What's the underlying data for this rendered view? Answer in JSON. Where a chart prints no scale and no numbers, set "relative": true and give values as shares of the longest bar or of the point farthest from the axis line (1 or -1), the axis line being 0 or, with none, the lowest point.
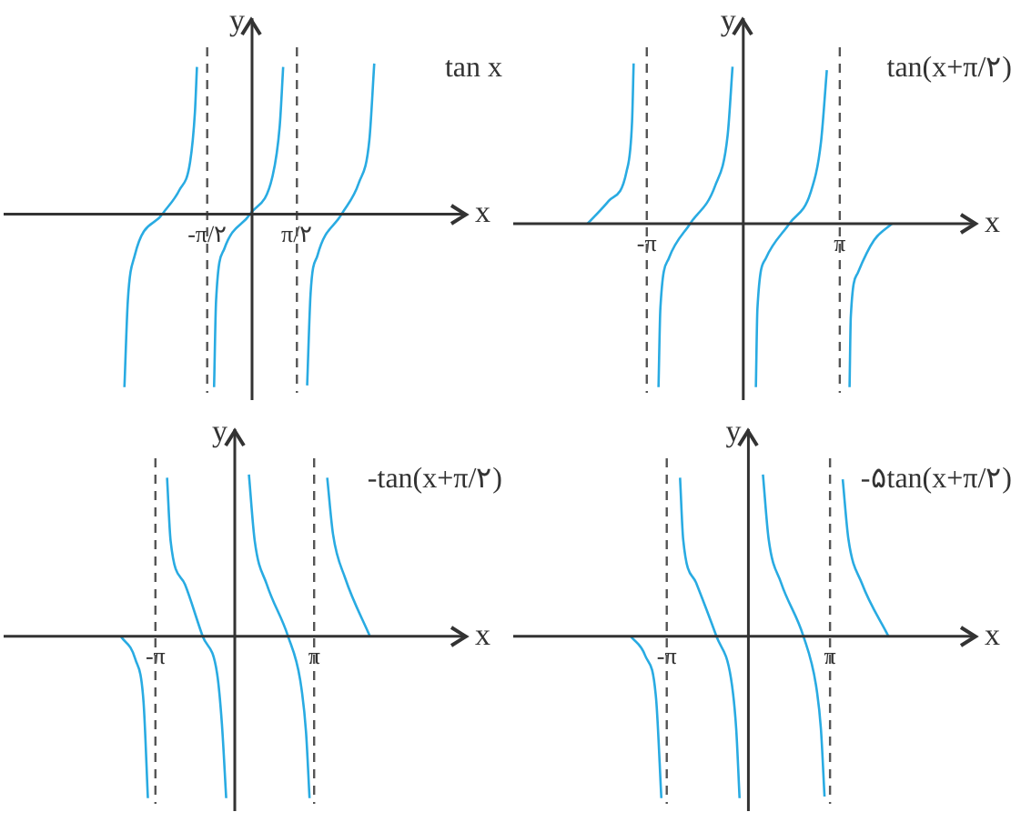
{
  "chart_data": [
    {
      "type": "line",
      "title": "tan x",
      "xlabel": "x",
      "ylabel": "y",
      "relative": true,
      "grid": false,
      "legend": false,
      "tick_labels": "x",
      "marker": "none",
      "xlim": [
        -8.7,
        7.49
      ],
      "xticks": [
        {
          "value": -1.5708,
          "label": "-π/۲"
        },
        {
          "value": 1.5708,
          "label": "π/۲"
        }
      ],
      "ref_lines": [
        {
          "axis": "x",
          "value": -1.5708,
          "color": "#555555",
          "line_style": "dashed"
        },
        {
          "axis": "x",
          "value": 1.5708,
          "color": "#555555",
          "line_style": "dashed"
        }
      ],
      "series": [
        {
          "color": "#29abe2",
          "x": [
            -4.47,
            -4.35,
            -4.11,
            -3.14,
            -2.54,
            -2.17,
            -2.0,
            -1.93
          ],
          "values": [
            -1.0,
            -0.5,
            -0.24,
            0,
            0.14,
            0.3,
            0.59,
            0.85
          ]
        },
        {
          "color": "#29abe2",
          "x": [
            -1.33,
            -1.26,
            -0.97,
            -0.07,
            0.72,
            0.97,
            1.09
          ],
          "values": [
            -1.0,
            -0.5,
            -0.2,
            0,
            0.22,
            0.51,
            0.85
          ]
        },
        {
          "color": "#29abe2",
          "x": [
            1.93,
            2.05,
            2.29,
            3.14,
            3.74,
            4.11,
            4.28
          ],
          "values": [
            -0.99,
            -0.46,
            -0.24,
            0,
            0.18,
            0.43,
            0.87
          ]
        }
      ]
    },
    {
      "type": "line",
      "title": "tan(x+π/۲)",
      "xlabel": "x",
      "ylabel": "y",
      "relative": true,
      "grid": false,
      "legend": false,
      "tick_labels": "x",
      "marker": "none",
      "xlim": [
        -7.49,
        7.56
      ],
      "xticks": [
        {
          "value": -3.1416,
          "label": "-π"
        },
        {
          "value": 3.1416,
          "label": "π"
        }
      ],
      "ref_lines": [
        {
          "axis": "x",
          "value": -3.1416,
          "color": "#555555",
          "line_style": "dashed"
        },
        {
          "axis": "x",
          "value": 3.1416,
          "color": "#555555",
          "line_style": "dashed"
        }
      ],
      "series": [
        {
          "color": "#29abe2",
          "x": [
            -5.07,
            -4.38,
            -3.8,
            -3.62,
            -3.57
          ],
          "values": [
            0,
            0.14,
            0.32,
            0.63,
            0.98
          ]
        },
        {
          "color": "#29abe2",
          "x": [
            -2.76,
            -2.7,
            -2.42,
            -1.73,
            -0.92,
            -0.51,
            -0.35
          ],
          "values": [
            -1.0,
            -0.52,
            -0.21,
            0,
            0.23,
            0.54,
            0.96
          ]
        },
        {
          "color": "#29abe2",
          "x": [
            0.41,
            0.46,
            0.74,
            1.5,
            2.19,
            2.53,
            2.72
          ],
          "values": [
            -1.0,
            -0.52,
            -0.21,
            0,
            0.19,
            0.5,
            0.94
          ]
        },
        {
          "color": "#29abe2",
          "x": [
            3.46,
            3.5,
            3.73,
            4.26,
            4.84
          ],
          "values": [
            -1.0,
            -0.57,
            -0.3,
            -0.1,
            0
          ]
        }
      ]
    },
    {
      "type": "line",
      "title": "-tan(x+π/۲)",
      "xlabel": "x",
      "ylabel": "y",
      "relative": true,
      "grid": false,
      "legend": false,
      "tick_labels": "x",
      "marker": "none",
      "xlim": [
        -9.15,
        9.15
      ],
      "xticks": [
        {
          "value": -3.1416,
          "label": "-π"
        },
        {
          "value": 3.1416,
          "label": "π"
        }
      ],
      "ref_lines": [
        {
          "axis": "x",
          "value": -3.1416,
          "color": "#555555",
          "line_style": "dashed"
        },
        {
          "axis": "x",
          "value": 3.1416,
          "color": "#555555",
          "line_style": "dashed"
        }
      ],
      "series": [
        {
          "color": "#29abe2",
          "x": [
            -4.51,
            -3.94,
            -3.61,
            -3.44
          ],
          "values": [
            0,
            -0.14,
            -0.41,
            -1.0
          ]
        },
        {
          "color": "#29abe2",
          "x": [
            -2.68,
            -2.54,
            -1.97,
            -1.27,
            -0.7,
            -0.51,
            -0.34
          ],
          "values": [
            0.98,
            0.59,
            0.32,
            0,
            -0.23,
            -0.54,
            -1.0
          ]
        },
        {
          "color": "#29abe2",
          "x": [
            0.56,
            0.79,
            1.27,
            2.11,
            2.59,
            2.82,
            2.96
          ],
          "values": [
            1.0,
            0.59,
            0.32,
            0,
            -0.27,
            -0.59,
            -1.0
          ]
        },
        {
          "color": "#29abe2",
          "x": [
            3.66,
            3.89,
            4.37,
            5.35
          ],
          "values": [
            0.98,
            0.63,
            0.36,
            0
          ]
        }
      ]
    },
    {
      "type": "line",
      "title": "-۵tan(x+π/۲)",
      "xlabel": "x",
      "ylabel": "y",
      "relative": true,
      "grid": false,
      "legend": false,
      "tick_labels": "x",
      "marker": "none",
      "xlim": [
        -9.05,
        8.74
      ],
      "xticks": [
        {
          "value": -3.1416,
          "label": "-π"
        },
        {
          "value": 3.1416,
          "label": "π"
        }
      ],
      "ref_lines": [
        {
          "axis": "x",
          "value": -3.1416,
          "color": "#555555",
          "line_style": "dashed"
        },
        {
          "axis": "x",
          "value": 3.1416,
          "color": "#555555",
          "line_style": "dashed"
        }
      ],
      "series": [
        {
          "color": "#29abe2",
          "x": [
            -4.53,
            -3.97,
            -3.55,
            -3.35
          ],
          "values": [
            0,
            -0.12,
            -0.39,
            -1.0
          ]
        },
        {
          "color": "#29abe2",
          "x": [
            -2.63,
            -2.51,
            -2.01,
            -1.23,
            -0.67,
            -0.47,
            -0.34
          ],
          "values": [
            0.98,
            0.6,
            0.33,
            0,
            -0.26,
            -0.57,
            -1.0
          ]
        },
        {
          "color": "#29abe2",
          "x": [
            0.56,
            0.78,
            1.26,
            2.12,
            2.6,
            2.79,
            2.93
          ],
          "values": [
            1.0,
            0.6,
            0.33,
            0,
            -0.3,
            -0.57,
            -0.99
          ]
        },
        {
          "color": "#29abe2",
          "x": [
            3.63,
            3.85,
            4.36,
            5.39
          ],
          "values": [
            0.97,
            0.6,
            0.33,
            0
          ]
        }
      ]
    }
  ]
}
